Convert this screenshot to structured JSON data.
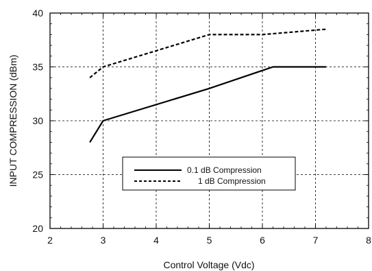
{
  "chart_data": {
    "type": "line",
    "xlabel": "Control Voltage (Vdc)",
    "ylabel": "INPUT COMPRESSION (dBm)",
    "xlim": [
      2,
      8
    ],
    "ylim": [
      20,
      40
    ],
    "x_ticks": [
      "2",
      "3",
      "4",
      "5",
      "6",
      "7",
      "8"
    ],
    "y_ticks": [
      "20",
      "25",
      "30",
      "35",
      "40"
    ],
    "grid": true,
    "legend_position": "lower-center",
    "series": [
      {
        "name": "0.1 dB Compression",
        "line_style": "solid",
        "x": [
          2.75,
          3.0,
          5.0,
          6.2,
          7.2
        ],
        "y": [
          28.0,
          30.0,
          33.0,
          35.0,
          35.0
        ]
      },
      {
        "name": "1 dB Compression",
        "line_style": "dashed",
        "x": [
          2.75,
          3.0,
          5.0,
          6.0,
          7.2
        ],
        "y": [
          34.0,
          35.0,
          38.0,
          38.0,
          38.5
        ]
      }
    ]
  }
}
